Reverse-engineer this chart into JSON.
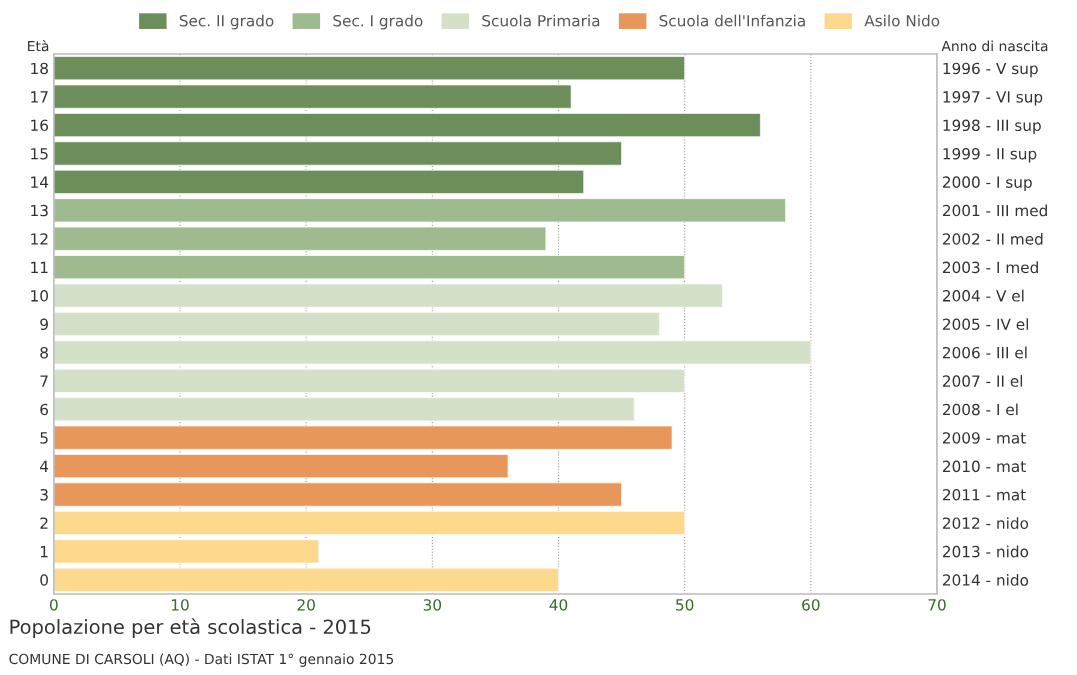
{
  "chart_data": {
    "type": "bar",
    "orientation": "horizontal",
    "title": "Popolazione per età scolastica - 2015",
    "ylabel": "Età",
    "y2label": "Anno di nascita",
    "categories": [
      "18",
      "17",
      "16",
      "15",
      "14",
      "13",
      "12",
      "11",
      "10",
      "9",
      "8",
      "7",
      "6",
      "5",
      "4",
      "3",
      "2",
      "1",
      "0"
    ],
    "y2_categories": [
      "1996 - V sup",
      "1997 - VI sup",
      "1998 - III sup",
      "1999 - II sup",
      "2000 - I sup",
      "2001 - III med",
      "2002 - II med",
      "2003 - I med",
      "2004 - V el",
      "2005 - IV el",
      "2006 - III el",
      "2007 - II el",
      "2008 - I el",
      "2009 - mat",
      "2010 - mat",
      "2011 - mat",
      "2012 - nido",
      "2013 - nido",
      "2014 - nido"
    ],
    "series": [
      {
        "name": "Sec. II grado",
        "color": "#6b8e5a",
        "values": [
          50,
          41,
          56,
          45,
          42,
          null,
          null,
          null,
          null,
          null,
          null,
          null,
          null,
          null,
          null,
          null,
          null,
          null,
          null
        ]
      },
      {
        "name": "Sec. I grado",
        "color": "#9dbb8e",
        "values": [
          null,
          null,
          null,
          null,
          null,
          58,
          39,
          50,
          null,
          null,
          null,
          null,
          null,
          null,
          null,
          null,
          null,
          null,
          null
        ]
      },
      {
        "name": "Scuola Primaria",
        "color": "#d5e0c8",
        "values": [
          null,
          null,
          null,
          null,
          null,
          null,
          null,
          null,
          53,
          48,
          60,
          50,
          46,
          null,
          null,
          null,
          null,
          null,
          null
        ]
      },
      {
        "name": "Scuola dell'Infanzia",
        "color": "#e8975a",
        "values": [
          null,
          null,
          null,
          null,
          null,
          null,
          null,
          null,
          null,
          null,
          null,
          null,
          null,
          49,
          36,
          45,
          null,
          null,
          null
        ]
      },
      {
        "name": "Asilo Nido",
        "color": "#fdd98e",
        "values": [
          null,
          null,
          null,
          null,
          null,
          null,
          null,
          null,
          null,
          null,
          null,
          null,
          null,
          null,
          null,
          null,
          50,
          21,
          40
        ]
      }
    ],
    "xlim": [
      0,
      70
    ],
    "xticks": [
      0,
      10,
      20,
      30,
      40,
      50,
      60,
      70
    ],
    "grid": "x",
    "legend": "top",
    "annotations": [
      "COMUNE DI CARSOLI (AQ) - Dati ISTAT 1° gennaio 2015"
    ]
  }
}
